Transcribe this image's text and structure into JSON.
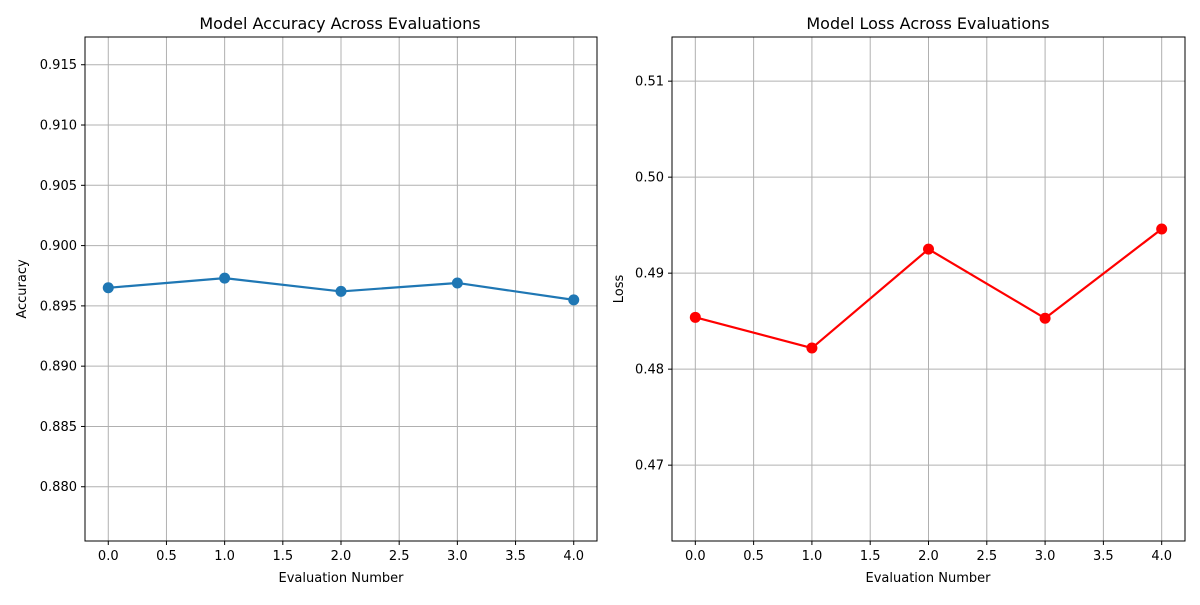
{
  "chart_data": [
    {
      "type": "line",
      "title": "Model Accuracy Across Evaluations",
      "xlabel": "Evaluation Number",
      "ylabel": "Accuracy",
      "xlim": [
        -0.2,
        4.2
      ],
      "ylim": [
        0.8755,
        0.9173
      ],
      "xticks": [
        "0.0",
        "0.5",
        "1.0",
        "1.5",
        "2.0",
        "2.5",
        "3.0",
        "3.5",
        "4.0"
      ],
      "yticks": [
        "0.880",
        "0.885",
        "0.890",
        "0.895",
        "0.900",
        "0.905",
        "0.910",
        "0.915"
      ],
      "grid": true,
      "x": [
        0,
        1,
        2,
        3,
        4
      ],
      "series": [
        {
          "color": "#1f77b4",
          "marker": "circle",
          "values": [
            0.8965,
            0.8973,
            0.8962,
            0.8969,
            0.8955
          ]
        }
      ]
    },
    {
      "type": "line",
      "title": "Model Loss Across Evaluations",
      "xlabel": "Evaluation Number",
      "ylabel": "Loss",
      "xlim": [
        -0.2,
        4.2
      ],
      "ylim": [
        0.4621,
        0.5146
      ],
      "xticks": [
        "0.0",
        "0.5",
        "1.0",
        "1.5",
        "2.0",
        "2.5",
        "3.0",
        "3.5",
        "4.0"
      ],
      "yticks": [
        "0.47",
        "0.48",
        "0.49",
        "0.50",
        "0.51"
      ],
      "grid": true,
      "x": [
        0,
        1,
        2,
        3,
        4
      ],
      "series": [
        {
          "color": "#ff0000",
          "marker": "circle",
          "values": [
            0.4854,
            0.4822,
            0.4925,
            0.4853,
            0.4946
          ]
        }
      ]
    }
  ]
}
